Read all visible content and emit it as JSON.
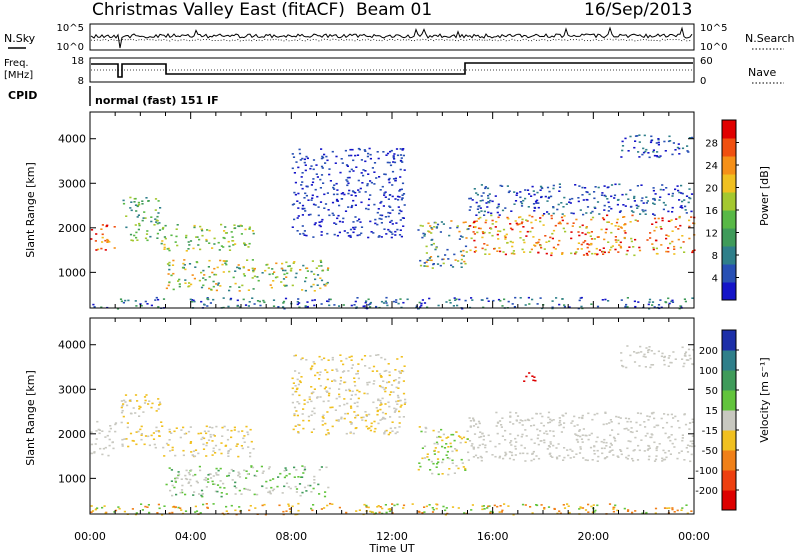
{
  "header": {
    "title": "Christmas Valley East (fitACF)",
    "beam": "Beam 01",
    "date": "16/Sep/2013"
  },
  "strip_labels": {
    "nsky": "N.Sky",
    "nsearch": "N.Search",
    "freq_line1": "Freq.",
    "freq_line2": "[MHz]",
    "nave": "Nave",
    "cpid": "CPID",
    "cpid_value": "normal (fast) 151 IF",
    "noise_ticks": [
      "10^5",
      "10^0"
    ],
    "freq_ticks": [
      "18",
      "8"
    ],
    "nave_ticks": [
      "60",
      "0"
    ]
  },
  "chart_data": [
    {
      "type": "heatmap",
      "name": "power-panel",
      "ylabel": "Slant Range [km]",
      "xlabel": "",
      "y_ticks": [
        "1000",
        "2000",
        "3000",
        "4000"
      ],
      "ylim": [
        200,
        4600
      ],
      "colorbar": {
        "label": "Power [dB]",
        "ticks": [
          "4",
          "8",
          "12",
          "16",
          "20",
          "24",
          "28"
        ],
        "colors": [
          "#1414c8",
          "#2850b4",
          "#2f7f8a",
          "#3f9b5a",
          "#58b846",
          "#a4c830",
          "#f0c020",
          "#f59018",
          "#f05010",
          "#e00000"
        ]
      }
    },
    {
      "type": "heatmap",
      "name": "velocity-panel",
      "ylabel": "Slant Range [km]",
      "xlabel": "Time UT",
      "y_ticks": [
        "1000",
        "2000",
        "3000",
        "4000"
      ],
      "ylim": [
        200,
        4600
      ],
      "x_ticks": [
        "00:00",
        "04:00",
        "08:00",
        "12:00",
        "16:00",
        "20:00",
        "00:00"
      ],
      "colorbar": {
        "label": "Velocity [m s⁻¹]",
        "ticks": [
          "200",
          "100",
          "50",
          "15",
          "-15",
          "-50",
          "-100",
          "-200"
        ],
        "colors": [
          "#1c2fa8",
          "#2f7f8a",
          "#3f9b5a",
          "#62c43c",
          "#c8c8c0",
          "#f0c020",
          "#f08018",
          "#ee4010",
          "#dd0000"
        ]
      }
    }
  ]
}
